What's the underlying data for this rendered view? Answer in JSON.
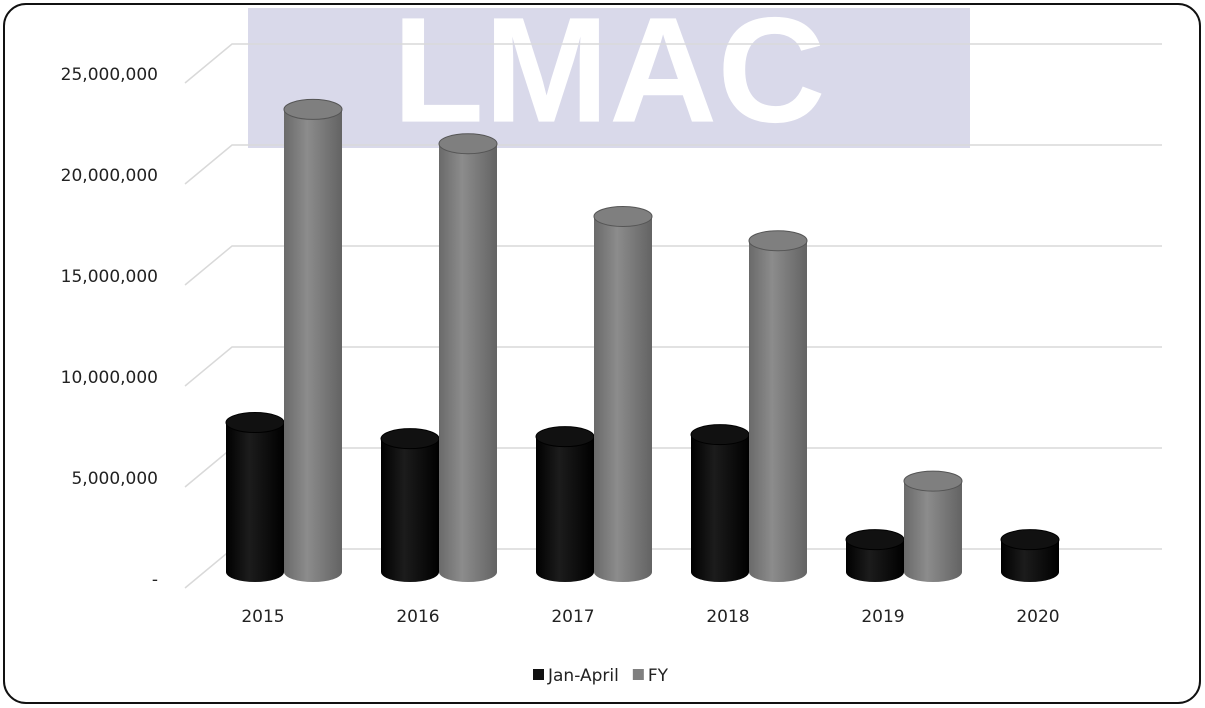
{
  "chart_data": {
    "type": "bar3d",
    "watermark": "LMAC",
    "categories": [
      "2015",
      "2016",
      "2017",
      "2018",
      "2019",
      "2020"
    ],
    "series": [
      {
        "name": "Jan-April",
        "color": "#111111",
        "values": [
          7400000,
          6600000,
          6700000,
          6800000,
          1600000,
          1600000
        ]
      },
      {
        "name": "FY",
        "color": "#7f7f7f",
        "values": [
          22900000,
          21200000,
          17600000,
          16400000,
          4500000,
          null
        ]
      }
    ],
    "ylim": [
      0,
      25000000
    ],
    "yticks": [
      {
        "value": 0,
        "label": "-"
      },
      {
        "value": 5000000,
        "label": "5,000,000"
      },
      {
        "value": 10000000,
        "label": "10,000,000"
      },
      {
        "value": 15000000,
        "label": "15,000,000"
      },
      {
        "value": 20000000,
        "label": "20,000,000"
      },
      {
        "value": 25000000,
        "label": "25,000,000"
      }
    ],
    "grid": true,
    "legend": "bottom"
  }
}
